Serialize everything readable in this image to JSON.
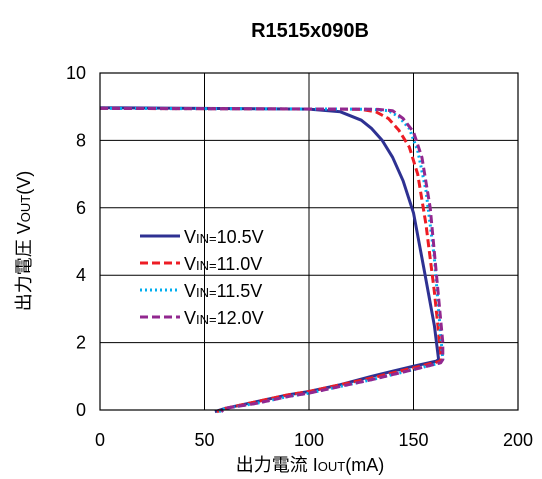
{
  "chart_data": {
    "type": "line",
    "title": "R1515x090B",
    "xlabel": {
      "main": "出力電流 I",
      "sub": "OUT",
      "suffix": "(mA)"
    },
    "ylabel": {
      "main": "出力電圧 V",
      "sub": "OUT",
      "suffix": "(V)"
    },
    "xlim": [
      0,
      200
    ],
    "ylim": [
      0,
      10
    ],
    "xticks": [
      0,
      50,
      100,
      150,
      200
    ],
    "yticks": [
      0,
      2,
      4,
      6,
      8,
      10
    ],
    "grid": true,
    "legend_position": "left-center",
    "series": [
      {
        "name": "V IN=10.5V",
        "legend": {
          "v": "V",
          "sub": "IN=",
          "val": "10.5V"
        },
        "color": "#2e3192",
        "dash": "solid",
        "x": [
          0,
          100,
          115,
          125,
          130,
          135,
          140,
          145,
          150,
          155,
          160,
          162,
          161,
          150,
          140,
          130,
          115,
          100,
          90,
          75,
          60,
          55
        ],
        "y": [
          8.97,
          8.93,
          8.85,
          8.6,
          8.35,
          8.0,
          7.5,
          6.8,
          5.85,
          4.2,
          2.5,
          1.5,
          1.45,
          1.3,
          1.15,
          1.0,
          0.75,
          0.55,
          0.45,
          0.25,
          0.05,
          -0.05
        ]
      },
      {
        "name": "V IN=11.0V",
        "legend": {
          "v": "V",
          "sub": "IN=",
          "val": "11.0V"
        },
        "color": "#ed1c24",
        "dash": "8 4",
        "x": [
          0,
          115,
          125,
          132,
          138,
          143,
          148,
          152,
          156,
          160,
          163,
          163,
          150,
          140,
          130,
          115,
          100,
          90,
          75,
          60,
          56
        ],
        "y": [
          8.95,
          8.93,
          8.92,
          8.85,
          8.65,
          8.3,
          7.8,
          7.0,
          5.5,
          3.5,
          1.7,
          1.45,
          1.25,
          1.1,
          0.95,
          0.75,
          0.55,
          0.45,
          0.25,
          0.05,
          -0.05
        ]
      },
      {
        "name": "V IN=11.5V",
        "legend": {
          "v": "V",
          "sub": "IN=",
          "val": "11.5V"
        },
        "color": "#00aeef",
        "dash": "2 3",
        "x": [
          0,
          120,
          130,
          138,
          143,
          148,
          152,
          156,
          160,
          163,
          164,
          163,
          150,
          140,
          130,
          115,
          100,
          90,
          75,
          60,
          57
        ],
        "y": [
          8.95,
          8.93,
          8.92,
          8.88,
          8.7,
          8.35,
          7.7,
          6.5,
          4.5,
          2.2,
          1.5,
          1.4,
          1.2,
          1.05,
          0.9,
          0.7,
          0.5,
          0.4,
          0.2,
          0.05,
          -0.05
        ]
      },
      {
        "name": "V IN=12.0V",
        "legend": {
          "v": "V",
          "sub": "IN=",
          "val": "12.0V"
        },
        "color": "#92278f",
        "dash": "8 4",
        "x": [
          0,
          125,
          133,
          140,
          145,
          150,
          154,
          158,
          161,
          164,
          164,
          163,
          150,
          140,
          130,
          115,
          100,
          90,
          75,
          60,
          58
        ],
        "y": [
          8.95,
          8.93,
          8.92,
          8.88,
          8.65,
          8.25,
          7.5,
          6.0,
          4.0,
          2.0,
          1.5,
          1.4,
          1.2,
          1.05,
          0.9,
          0.7,
          0.5,
          0.4,
          0.2,
          0.05,
          -0.05
        ]
      }
    ]
  }
}
